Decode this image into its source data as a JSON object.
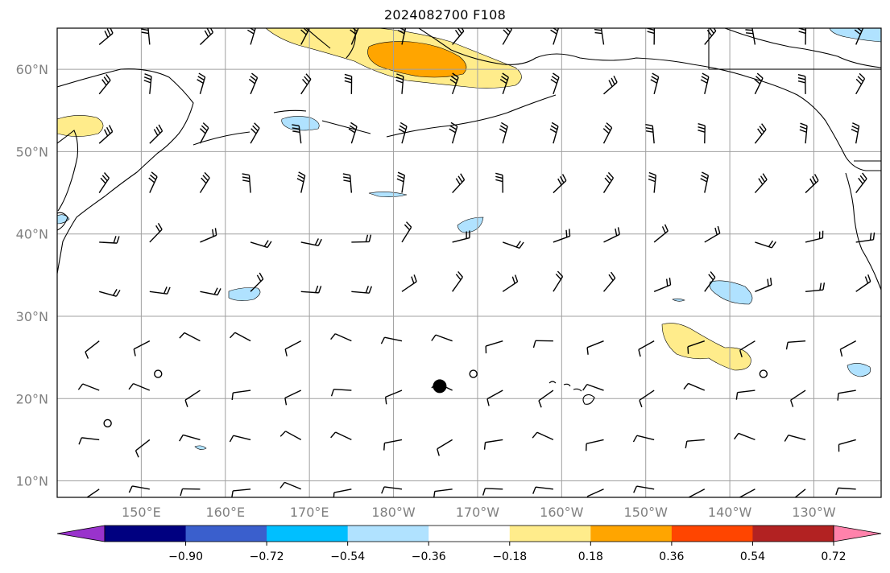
{
  "title": "2024082700 F108",
  "lat_labels": [
    "60°N",
    "50°N",
    "40°N",
    "30°N",
    "20°N",
    "10°N"
  ],
  "lon_labels": [
    "150°E",
    "160°E",
    "170°E",
    "180°W",
    "170°W",
    "160°W",
    "150°W",
    "140°W",
    "130°W"
  ],
  "colorbar": {
    "colors": [
      "#9933cc",
      "#000080",
      "#3a5fcd",
      "#00bfff",
      "#b0e2ff",
      "#ffffff",
      "#ffec8b",
      "#ffa500",
      "#ff4500",
      "#b22222",
      "#ff82ab"
    ],
    "labels": [
      "−0.90",
      "−0.72",
      "−0.54",
      "−0.36",
      "−0.18",
      "0.18",
      "0.36",
      "0.54",
      "0.72",
      "0.90"
    ]
  },
  "map_meta": {
    "projection": "plate carree",
    "extent": {
      "lon_min_east": 140,
      "lon_max_east": 238,
      "lat_min": 8,
      "lat_max": 65
    },
    "gridlines": true,
    "land_color": "#ffffff",
    "coastline_color": "#000000"
  },
  "features": {
    "cyclone_marker": {
      "lon_east": 185.5,
      "lat": 21.5,
      "symbol": "filled-circle"
    },
    "open_circles": [
      {
        "lon_east": 152,
        "lat": 23
      },
      {
        "lon_east": 189.5,
        "lat": 23
      },
      {
        "lon_east": 224,
        "lat": 23
      },
      {
        "lon_east": 146,
        "lat": 17
      }
    ]
  },
  "shaded_regions": [
    {
      "name": "Bering Sea / Alaska positive anomaly",
      "level": "0.18"
    },
    {
      "name": "Bering Sea / Alaska core",
      "level": "0.36"
    },
    {
      "name": "Subtropical east of Hawaii",
      "level": "0.18"
    },
    {
      "name": "Kamchatka / Okhotsk",
      "level": "0.18"
    },
    {
      "name": "Aleutian negative patch",
      "level": "-0.18"
    },
    {
      "name": "Mid-Pacific negative patches",
      "level": "-0.18"
    }
  ]
}
